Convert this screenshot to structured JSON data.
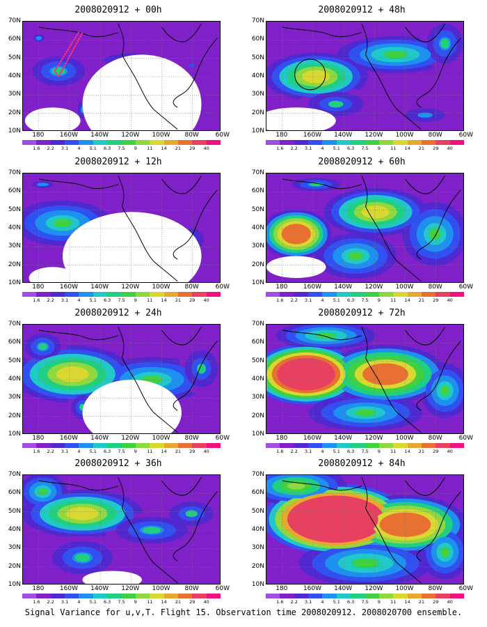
{
  "caption": "Signal Variance for u,v,T. Flight 15. Observation time 2008020912. 2008020700 ensemble.",
  "y_axis_labels": [
    "70N",
    "60N",
    "50N",
    "40N",
    "30N",
    "20N",
    "10N"
  ],
  "x_axis_labels": [
    "180",
    "160W",
    "140W",
    "120W",
    "100W",
    "80W",
    "60W"
  ],
  "colorbar": {
    "labels": [
      "1.6",
      "2.2",
      "3.1",
      "4",
      "5.1",
      "6.3",
      "7.5",
      "9",
      "11",
      "14",
      "21",
      "29",
      "40"
    ],
    "colors": [
      "#a050e0",
      "#8020c8",
      "#5028d0",
      "#3050f0",
      "#1e90f0",
      "#20c8c8",
      "#20d080",
      "#40d040",
      "#90d840",
      "#d8d830",
      "#e8a830",
      "#e87030",
      "#e84060",
      "#f01080"
    ]
  },
  "panels": [
    {
      "title": "2008020912 + 00h"
    },
    {
      "title": "2008020912 + 48h"
    },
    {
      "title": "2008020912 + 12h"
    },
    {
      "title": "2008020912 + 60h"
    },
    {
      "title": "2008020912 + 24h"
    },
    {
      "title": "2008020912 + 72h"
    },
    {
      "title": "2008020912 + 36h"
    },
    {
      "title": "2008020912 + 84h"
    }
  ]
}
